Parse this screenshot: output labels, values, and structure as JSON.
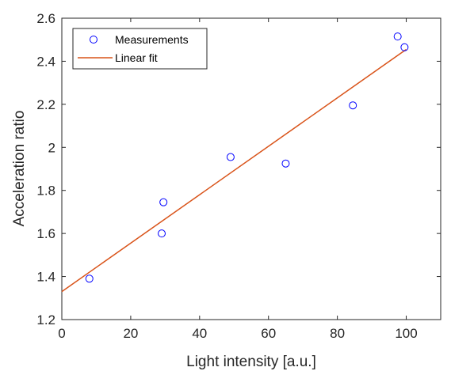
{
  "chart_data": {
    "type": "scatter",
    "xlabel": "Light intensity [a.u.]",
    "ylabel": "Acceleration ratio",
    "xlim": [
      0,
      110
    ],
    "ylim": [
      1.2,
      2.6
    ],
    "xticks": [
      "0",
      "20",
      "40",
      "60",
      "80",
      "100"
    ],
    "yticks": [
      "1.2",
      "1.4",
      "1.6",
      "1.8",
      "2",
      "2.2",
      "2.4",
      "2.6"
    ],
    "grid": false,
    "legend_position": "top-left",
    "series": [
      {
        "name": "Measurements",
        "kind": "markers",
        "marker": "circle",
        "color": "#0000ff",
        "points": [
          {
            "x": 8,
            "y": 1.39
          },
          {
            "x": 29,
            "y": 1.6
          },
          {
            "x": 29.5,
            "y": 1.745
          },
          {
            "x": 49,
            "y": 1.955
          },
          {
            "x": 65,
            "y": 1.925
          },
          {
            "x": 84.5,
            "y": 2.195
          },
          {
            "x": 97.5,
            "y": 2.515
          },
          {
            "x": 99.5,
            "y": 2.465
          }
        ]
      },
      {
        "name": "Linear fit",
        "kind": "line",
        "color": "#d95319",
        "points": [
          {
            "x": 0,
            "y": 1.33
          },
          {
            "x": 100,
            "y": 2.455
          }
        ]
      }
    ]
  }
}
